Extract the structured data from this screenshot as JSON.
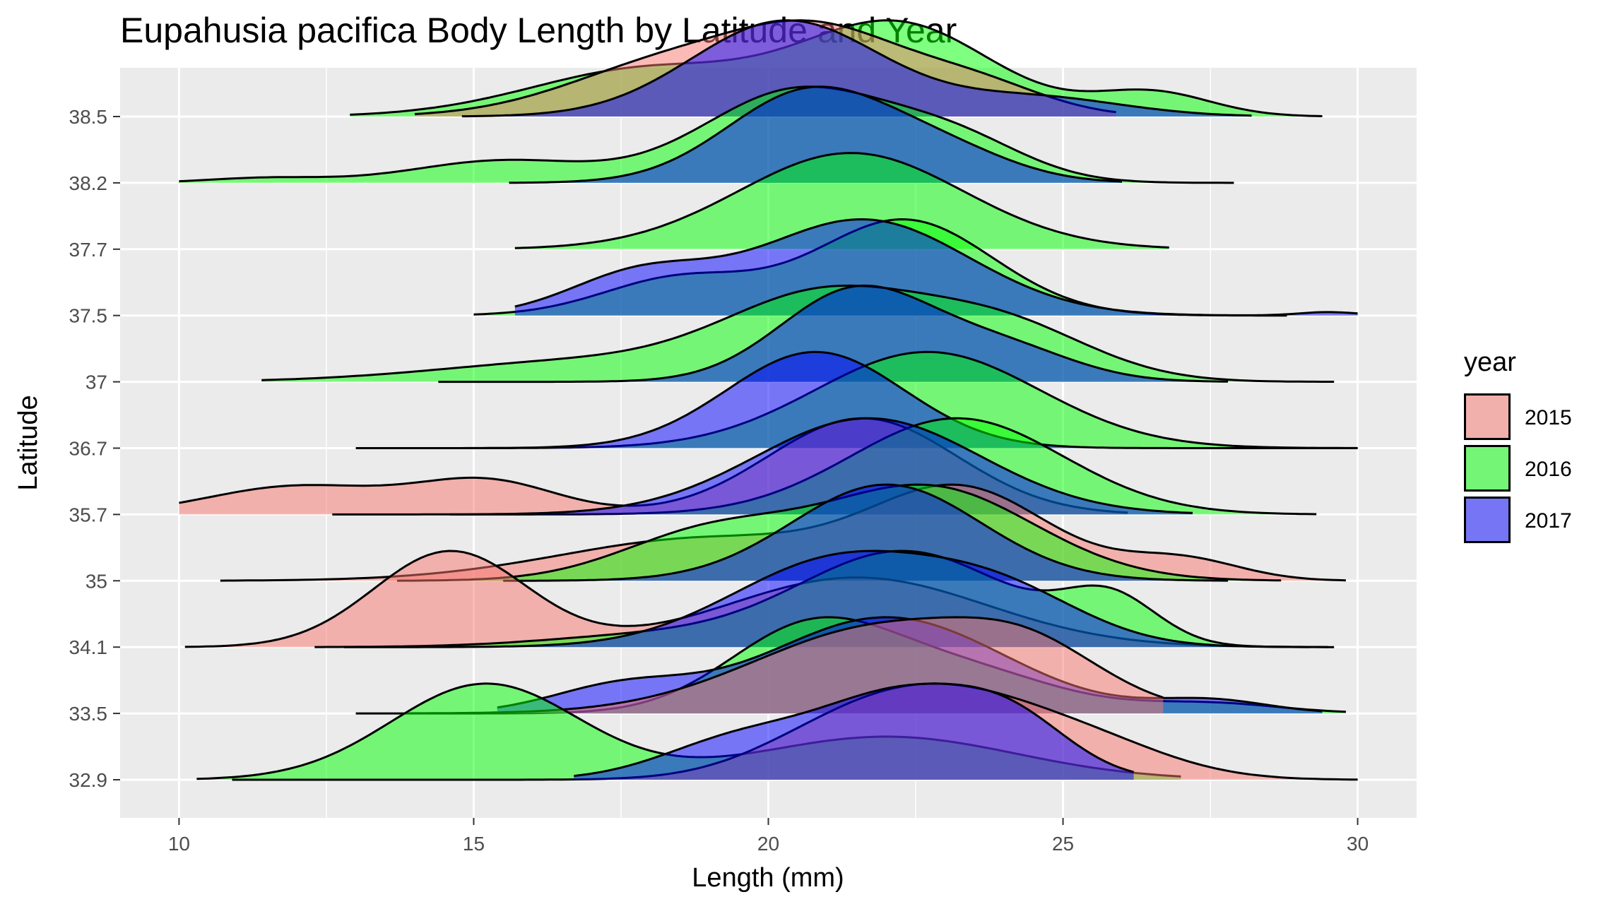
{
  "chart_data": {
    "type": "ridgeline",
    "title": "Eupahusia pacifica Body Length by Latitude and Year",
    "xlabel": "Length (mm)",
    "ylabel": "Latitude",
    "xlim": [
      9,
      31
    ],
    "x_ticks": [
      10,
      15,
      20,
      25,
      30
    ],
    "latitudes": [
      "32.9",
      "33.5",
      "34.1",
      "35",
      "35.7",
      "36.7",
      "37",
      "37.5",
      "37.7",
      "38.2",
      "38.5"
    ],
    "legend": {
      "title": "year",
      "position": "right",
      "items": [
        {
          "label": "2015",
          "color": "#F8766D"
        },
        {
          "label": "2016",
          "color": "#00FF00"
        },
        {
          "label": "2017",
          "color": "#0000FF"
        }
      ]
    },
    "grid": true,
    "fill_opacity": 0.5,
    "ridges": [
      {
        "latitude": "32.9",
        "year": "2016",
        "range": [
          10.3,
          27
        ],
        "height": 1.0,
        "peaks": [
          {
            "x": 15.2,
            "w": 1.6,
            "h": 1.0
          },
          {
            "x": 22,
            "w": 2.2,
            "h": 0.45
          }
        ]
      },
      {
        "latitude": "32.9",
        "year": "2015",
        "range": [
          10.9,
          30
        ],
        "height": 1.0,
        "peaks": [
          {
            "x": 21,
            "w": 1.4,
            "h": 0.35
          },
          {
            "x": 23,
            "w": 1.6,
            "h": 0.9
          },
          {
            "x": 25.5,
            "w": 1.4,
            "h": 0.35
          }
        ]
      },
      {
        "latitude": "32.9",
        "year": "2017",
        "range": [
          16.7,
          26.2
        ],
        "height": 1.0,
        "peaks": [
          {
            "x": 19.5,
            "w": 1.3,
            "h": 0.35
          },
          {
            "x": 22.3,
            "w": 1.4,
            "h": 0.75
          },
          {
            "x": 24.2,
            "w": 1.0,
            "h": 0.4
          }
        ]
      },
      {
        "latitude": "33.5",
        "year": "2016",
        "range": [
          13,
          29.8
        ],
        "height": 1.0,
        "peaks": [
          {
            "x": 20.7,
            "w": 1.4,
            "h": 1.0
          },
          {
            "x": 23.3,
            "w": 1.6,
            "h": 0.5
          },
          {
            "x": 27.5,
            "w": 1.2,
            "h": 0.12
          }
        ]
      },
      {
        "latitude": "33.5",
        "year": "2017",
        "range": [
          15.4,
          29.4
        ],
        "height": 1.0,
        "peaks": [
          {
            "x": 17.5,
            "w": 1.2,
            "h": 0.2
          },
          {
            "x": 22,
            "w": 2.0,
            "h": 0.75
          },
          {
            "x": 27.5,
            "w": 1.0,
            "h": 0.1
          }
        ]
      },
      {
        "latitude": "33.5",
        "year": "2015",
        "range": [
          13.9,
          26.7
        ],
        "height": 1.0,
        "peaks": [
          {
            "x": 22,
            "w": 2.2,
            "h": 0.7
          },
          {
            "x": 24.5,
            "w": 1.2,
            "h": 0.3
          }
        ]
      },
      {
        "latitude": "34.1",
        "year": "2015",
        "range": [
          10.1,
          29.5
        ],
        "height": 1.0,
        "peaks": [
          {
            "x": 14.6,
            "w": 1.3,
            "h": 0.55
          },
          {
            "x": 21.5,
            "w": 2.2,
            "h": 0.4
          }
        ]
      },
      {
        "latitude": "34.1",
        "year": "2016",
        "range": [
          12.3,
          29.2
        ],
        "height": 1.0,
        "peaks": [
          {
            "x": 18,
            "w": 1.8,
            "h": 0.1
          },
          {
            "x": 22.3,
            "w": 1.8,
            "h": 0.85
          },
          {
            "x": 25.8,
            "w": 0.8,
            "h": 0.4
          }
        ]
      },
      {
        "latitude": "34.1",
        "year": "2017",
        "range": [
          12.8,
          29.6
        ],
        "height": 1.0,
        "peaks": [
          {
            "x": 21.2,
            "w": 1.8,
            "h": 0.75
          },
          {
            "x": 24,
            "w": 1.4,
            "h": 0.4
          }
        ]
      },
      {
        "latitude": "35",
        "year": "2015",
        "range": [
          10.7,
          29.8
        ],
        "height": 1.0,
        "peaks": [
          {
            "x": 19,
            "w": 2.5,
            "h": 0.3
          },
          {
            "x": 23.3,
            "w": 1.5,
            "h": 0.6
          },
          {
            "x": 27,
            "w": 1.0,
            "h": 0.15
          }
        ]
      },
      {
        "latitude": "35",
        "year": "2016",
        "range": [
          13.7,
          28.7
        ],
        "height": 1.0,
        "peaks": [
          {
            "x": 19,
            "w": 1.5,
            "h": 0.4
          },
          {
            "x": 22.7,
            "w": 1.8,
            "h": 0.8
          }
        ]
      },
      {
        "latitude": "35",
        "year": "2017",
        "range": [
          15.5,
          27.8
        ],
        "height": 1.0,
        "peaks": [
          {
            "x": 22,
            "w": 1.6,
            "h": 0.95
          }
        ]
      },
      {
        "latitude": "35.7",
        "year": "2015",
        "range": [
          10,
          26.1
        ],
        "height": 1.0,
        "peaks": [
          {
            "x": 12,
            "w": 1.5,
            "h": 0.22
          },
          {
            "x": 15.2,
            "w": 1.2,
            "h": 0.26
          },
          {
            "x": 21.6,
            "w": 1.6,
            "h": 0.75
          }
        ]
      },
      {
        "latitude": "35.7",
        "year": "2016",
        "range": [
          14.6,
          29.3
        ],
        "height": 1.0,
        "peaks": [
          {
            "x": 23.2,
            "w": 1.8,
            "h": 0.95
          }
        ]
      },
      {
        "latitude": "35.7",
        "year": "2017",
        "range": [
          12.6,
          27.2
        ],
        "height": 1.0,
        "peaks": [
          {
            "x": 21.7,
            "w": 1.9,
            "h": 0.95
          }
        ]
      },
      {
        "latitude": "36.7",
        "year": "2016",
        "range": [
          13,
          30
        ],
        "height": 1.0,
        "peaks": [
          {
            "x": 22.7,
            "w": 1.9,
            "h": 0.85
          }
        ]
      },
      {
        "latitude": "36.7",
        "year": "2017",
        "range": [
          14.3,
          30
        ],
        "height": 1.0,
        "peaks": [
          {
            "x": 20.8,
            "w": 1.5,
            "h": 1.0
          }
        ]
      },
      {
        "latitude": "37",
        "year": "2016",
        "range": [
          11.4,
          29.6
        ],
        "height": 1.0,
        "peaks": [
          {
            "x": 17,
            "w": 2.5,
            "h": 0.18
          },
          {
            "x": 21,
            "w": 1.7,
            "h": 0.7
          },
          {
            "x": 24,
            "w": 1.5,
            "h": 0.45
          }
        ]
      },
      {
        "latitude": "37",
        "year": "2017",
        "range": [
          14.4,
          27.8
        ],
        "height": 1.0,
        "peaks": [
          {
            "x": 21.5,
            "w": 1.3,
            "h": 1.0
          },
          {
            "x": 24,
            "w": 1.2,
            "h": 0.35
          }
        ]
      },
      {
        "latitude": "37.5",
        "year": "2016",
        "range": [
          15,
          28.8
        ],
        "height": 1.0,
        "peaks": [
          {
            "x": 18.5,
            "w": 1.3,
            "h": 0.35
          },
          {
            "x": 22.3,
            "w": 1.5,
            "h": 0.9
          }
        ]
      },
      {
        "latitude": "37.5",
        "year": "2017",
        "range": [
          15.7,
          30
        ],
        "height": 1.0,
        "peaks": [
          {
            "x": 17.8,
            "w": 1.2,
            "h": 0.35
          },
          {
            "x": 21.6,
            "w": 1.8,
            "h": 0.85
          },
          {
            "x": 29.5,
            "w": 0.5,
            "h": 0.03
          }
        ]
      },
      {
        "latitude": "37.7",
        "year": "2016",
        "range": [
          15.7,
          26.8
        ],
        "height": 1.0,
        "peaks": [
          {
            "x": 21.4,
            "w": 1.9,
            "h": 1.0
          }
        ]
      },
      {
        "latitude": "38.2",
        "year": "2016",
        "range": [
          10,
          27.9
        ],
        "height": 1.0,
        "peaks": [
          {
            "x": 11.5,
            "w": 1.0,
            "h": 0.04
          },
          {
            "x": 15.5,
            "w": 1.5,
            "h": 0.18
          },
          {
            "x": 20.5,
            "w": 1.6,
            "h": 0.75
          },
          {
            "x": 23.2,
            "w": 1.2,
            "h": 0.3
          }
        ]
      },
      {
        "latitude": "38.2",
        "year": "2017",
        "range": [
          15.6,
          26
        ],
        "height": 1.0,
        "peaks": [
          {
            "x": 20.7,
            "w": 1.4,
            "h": 1.0
          },
          {
            "x": 23,
            "w": 1.2,
            "h": 0.3
          }
        ]
      },
      {
        "latitude": "38.5",
        "year": "2016",
        "range": [
          12.9,
          29.4
        ],
        "height": 1.0,
        "peaks": [
          {
            "x": 18,
            "w": 2.0,
            "h": 0.4
          },
          {
            "x": 22.2,
            "w": 1.6,
            "h": 0.75
          },
          {
            "x": 26.5,
            "w": 1.0,
            "h": 0.2
          }
        ]
      },
      {
        "latitude": "38.5",
        "year": "2015",
        "range": [
          14,
          25.9
        ],
        "height": 1.0,
        "peaks": [
          {
            "x": 18.5,
            "w": 1.8,
            "h": 0.45
          },
          {
            "x": 21,
            "w": 1.4,
            "h": 0.55
          },
          {
            "x": 23.5,
            "w": 1.2,
            "h": 0.25
          }
        ]
      },
      {
        "latitude": "38.5",
        "year": "2017",
        "range": [
          14.8,
          28.2
        ],
        "height": 1.0,
        "peaks": [
          {
            "x": 20.3,
            "w": 1.6,
            "h": 1.0
          },
          {
            "x": 24.5,
            "w": 1.5,
            "h": 0.2
          }
        ]
      }
    ]
  }
}
